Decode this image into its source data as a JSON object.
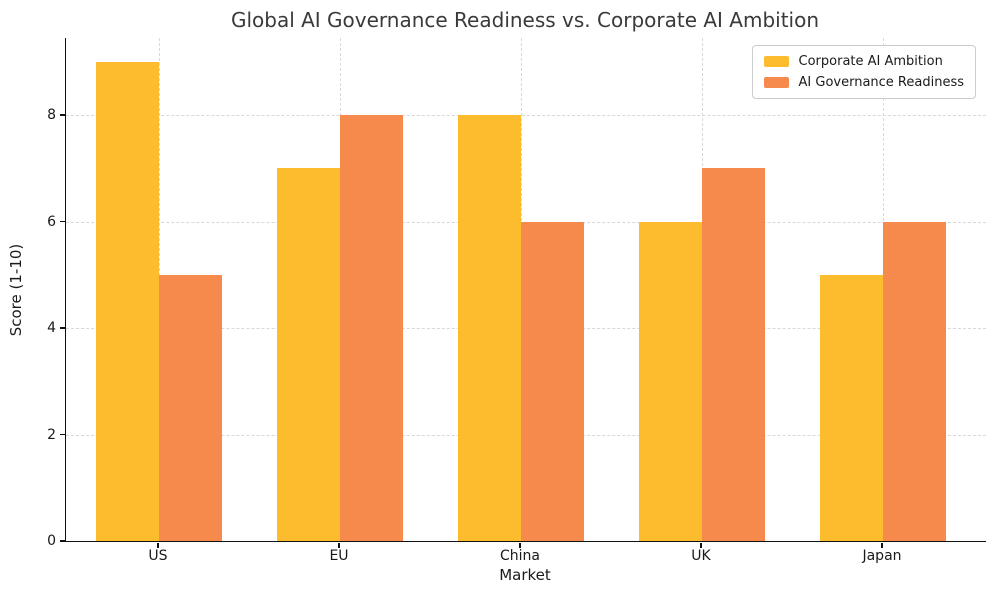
{
  "chart_data": {
    "type": "bar",
    "title": "Global AI Governance Readiness vs. Corporate AI Ambition",
    "xlabel": "Market",
    "ylabel": "Score (1-10)",
    "categories": [
      "US",
      "EU",
      "China",
      "UK",
      "Japan"
    ],
    "series": [
      {
        "name": "Corporate AI Ambition",
        "color": "#FDBC2D",
        "values": [
          9,
          7,
          8,
          6,
          5
        ]
      },
      {
        "name": "AI Governance Readiness",
        "color": "#F58A4C",
        "values": [
          5,
          8,
          6,
          7,
          6
        ]
      }
    ],
    "ylim": [
      0,
      9.45
    ],
    "yticks": [
      0,
      2,
      4,
      6,
      8
    ],
    "grid": true,
    "grid_linestyle": "dashed",
    "legend_position": "upper-right"
  },
  "style_colors": {
    "title_text": "#3a3a3a",
    "axis_text": "#1a1a1a",
    "gridline": "#d8d8d8",
    "spine": "#111111",
    "legend_border": "#cccccc",
    "background": "#ffffff"
  }
}
